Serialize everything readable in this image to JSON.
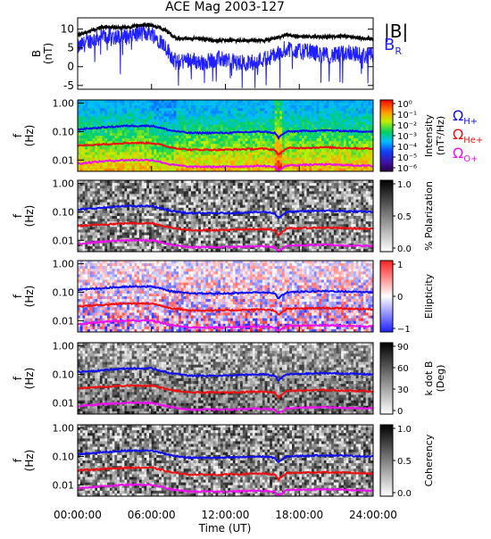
{
  "title": "ACE Mag 2003-127",
  "time_axis": {
    "label": "Time (UT)",
    "ticks": [
      "00:00:00",
      "06:00:00",
      "12:00:00",
      "18:00:00",
      "24:00:00"
    ],
    "range_hours": [
      0,
      24
    ]
  },
  "legend": {
    "b_total": "|B|",
    "b_r": "B",
    "b_r_sub": "R",
    "omega_h": "Ω",
    "omega_h_sub": "H+",
    "omega_he": "Ω",
    "omega_he_sub": "He+",
    "omega_o": "Ω",
    "omega_o_sub": "O+"
  },
  "colors": {
    "b_total": "#000000",
    "b_r": "#1f1fff",
    "omega_h": "#1010ee",
    "omega_he": "#ee1010",
    "omega_o": "#ee10ee"
  },
  "freq_ticks": [
    "1.00",
    "0.10",
    "0.01"
  ],
  "panels": [
    {
      "ylabel_top": "f",
      "ylabel_bottom": "(Hz)",
      "colormap": "rainbow",
      "cbar_title_1": "Intensity",
      "cbar_title_2": "(nT²/Hz)",
      "cbar_ticks": [
        "10⁰",
        "10⁻¹",
        "10⁻²",
        "10⁻³",
        "10⁻⁴",
        "10⁻⁵",
        "10⁻⁶"
      ]
    },
    {
      "ylabel_top": "f",
      "ylabel_bottom": "(Hz)",
      "colormap": "gray",
      "cbar_title_1": "% Polarization",
      "cbar_title_2": "",
      "cbar_ticks": [
        "1.0",
        "0.5",
        "0.0"
      ]
    },
    {
      "ylabel_top": "f",
      "ylabel_bottom": "(Hz)",
      "colormap": "bwr",
      "cbar_title_1": "Ellipticity",
      "cbar_title_2": "",
      "cbar_ticks": [
        "1",
        "0",
        "−1"
      ]
    },
    {
      "ylabel_top": "f",
      "ylabel_bottom": "(Hz)",
      "colormap": "gray",
      "cbar_title_1": "k dot B",
      "cbar_title_2": "(Deg)",
      "cbar_ticks": [
        "90",
        "60",
        "30",
        "0"
      ]
    },
    {
      "ylabel_top": "f",
      "ylabel_bottom": "(Hz)",
      "colormap": "gray",
      "cbar_title_1": "Coherency",
      "cbar_title_2": "",
      "cbar_ticks": [
        "1.0",
        "0.5",
        "0.0"
      ]
    }
  ],
  "chart_data": {
    "type": "line",
    "title": "ACE Mag 2003-127",
    "xlabel": "Time (UT)",
    "x_unit": "hours UT",
    "xlim": [
      0,
      24
    ],
    "field_panel": {
      "ylabel_top": "B",
      "ylabel_bottom": "(nT)",
      "ylim": [
        -6,
        13
      ],
      "yticks": [
        "10",
        "5",
        "0",
        "-5"
      ],
      "ytick_values": [
        10,
        5,
        0,
        -5
      ],
      "series": [
        {
          "name": "|B|",
          "hours": [
            0,
            1,
            2,
            3,
            4,
            5,
            6,
            7,
            8,
            9,
            10,
            11,
            12,
            13,
            14,
            15,
            16,
            17,
            18,
            19,
            20,
            21,
            22,
            23,
            24
          ],
          "values": [
            8.5,
            9.5,
            10.5,
            10.5,
            10.5,
            11,
            11,
            10,
            7.5,
            7.5,
            7.5,
            7,
            7,
            7,
            7,
            7,
            7.5,
            8.5,
            8,
            8,
            8,
            8,
            8,
            7.5,
            7.5
          ]
        },
        {
          "name": "B_R",
          "hours": [
            0,
            1,
            2,
            3,
            4,
            5,
            6,
            7,
            8,
            9,
            10,
            11,
            12,
            13,
            14,
            15,
            16,
            17,
            18,
            19,
            20,
            21,
            22,
            23,
            24
          ],
          "values": [
            5,
            7,
            8,
            8,
            8,
            9,
            9,
            6,
            1,
            2,
            1,
            2,
            2,
            1,
            1,
            2,
            3,
            5,
            4,
            4,
            3,
            3,
            4,
            3,
            3
          ]
        }
      ]
    },
    "frequency_panels": {
      "ylabel": "f (Hz)",
      "yscale": "log",
      "ylim": [
        0.004,
        1.3
      ],
      "ytick_values": [
        1.0,
        0.1,
        0.01
      ],
      "series": [
        {
          "name": "Ω_H+",
          "hours": [
            0,
            2,
            4,
            6,
            7.5,
            9,
            12,
            15,
            16,
            16.3,
            17,
            20,
            24
          ],
          "values": [
            0.12,
            0.14,
            0.16,
            0.16,
            0.11,
            0.09,
            0.09,
            0.1,
            0.09,
            0.06,
            0.1,
            0.11,
            0.1
          ]
        },
        {
          "name": "Ω_He+",
          "hours": [
            0,
            2,
            4,
            6,
            7.5,
            9,
            12,
            15,
            16,
            16.3,
            17,
            20,
            24
          ],
          "values": [
            0.032,
            0.036,
            0.04,
            0.04,
            0.028,
            0.023,
            0.023,
            0.025,
            0.023,
            0.015,
            0.026,
            0.028,
            0.025
          ]
        },
        {
          "name": "Ω_O+",
          "hours": [
            0,
            2,
            4,
            6,
            7.5,
            9,
            12,
            15,
            16,
            16.3,
            17,
            20,
            24
          ],
          "values": [
            0.0075,
            0.009,
            0.01,
            0.01,
            0.007,
            0.0058,
            0.0058,
            0.0062,
            0.0058,
            0.004,
            0.0065,
            0.007,
            0.0062
          ]
        }
      ]
    }
  }
}
